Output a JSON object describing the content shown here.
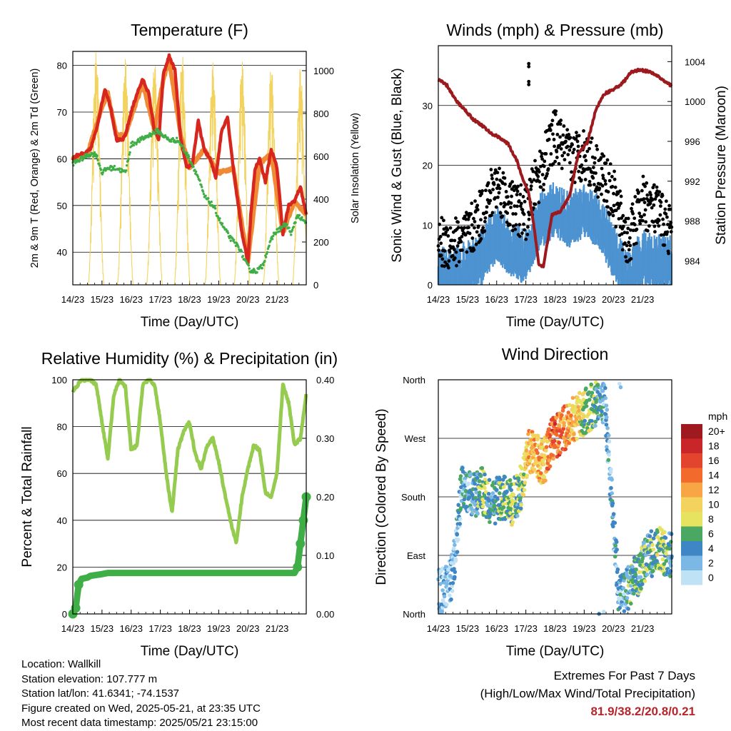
{
  "chart_data": [
    {
      "id": "temp",
      "type": "line",
      "title": "Temperature (F)",
      "xlabel": "Time (Day/UTC)",
      "ylabel": "2m & 9m T (Red, Orange) & 2m Td (Green)",
      "ylabel_right": "Solar Insolation (Yellow)",
      "xticks": [
        "14/23",
        "15/23",
        "16/23",
        "17/23",
        "18/23",
        "19/23",
        "20/23",
        "21/23"
      ],
      "ylim": [
        33,
        83
      ],
      "yticks": [
        40,
        50,
        60,
        70,
        80
      ],
      "ylim_right": [
        0,
        1090
      ],
      "yticks_right": [
        0,
        200,
        400,
        600,
        800,
        1000
      ],
      "series": [
        {
          "name": "2m T",
          "color": "#d7261e",
          "axis": "left",
          "x": [
            0,
            0.2,
            0.4,
            0.6,
            0.8,
            1.0,
            1.1,
            1.3,
            1.5,
            1.7,
            1.8,
            2.0,
            2.2,
            2.4,
            2.6,
            2.8,
            2.95,
            3.1,
            3.3,
            3.5,
            3.7,
            3.9,
            4.1,
            4.3,
            4.5,
            4.7,
            4.9,
            5.1,
            5.3,
            5.5,
            5.65,
            5.8,
            6.0,
            6.1,
            6.25,
            6.4,
            6.6,
            6.8,
            7.0,
            7.2,
            7.4,
            7.6,
            7.8,
            8.0
          ],
          "y": [
            60,
            61,
            61,
            62,
            66,
            72,
            75,
            71,
            64,
            64,
            65,
            70,
            74,
            77,
            74,
            66,
            64,
            78,
            82,
            79,
            64,
            58,
            59,
            68,
            62,
            60,
            56,
            66,
            69,
            58,
            51,
            44,
            38,
            48,
            58,
            60,
            55,
            62,
            58,
            44,
            50,
            51,
            54,
            48
          ]
        },
        {
          "name": "9m T",
          "color": "#f08a35",
          "axis": "left",
          "x": [
            0,
            0.5,
            1.0,
            1.2,
            1.5,
            1.8,
            2.0,
            2.4,
            2.8,
            3.1,
            3.3,
            3.7,
            4.0,
            4.5,
            5.0,
            5.5,
            6.0,
            6.4,
            6.8,
            7.2,
            7.6,
            8.0
          ],
          "y": [
            60,
            61,
            71,
            74,
            65,
            65,
            69,
            76,
            66,
            77,
            81,
            65,
            58,
            62,
            57,
            58,
            38,
            59,
            61,
            44,
            51,
            48
          ]
        },
        {
          "name": "2m Td",
          "color": "#3fae46",
          "axis": "left",
          "x": [
            0,
            0.3,
            0.6,
            0.8,
            1.0,
            1.2,
            1.5,
            1.8,
            2.0,
            2.3,
            2.6,
            2.9,
            3.1,
            3.3,
            3.6,
            4.0,
            4.3,
            4.5,
            4.8,
            5.1,
            5.4,
            5.7,
            5.9,
            6.1,
            6.3,
            6.5,
            6.7,
            6.9,
            7.1,
            7.3,
            7.5,
            7.7,
            7.85,
            8.0
          ],
          "y": [
            59,
            60,
            61,
            61,
            57,
            58,
            58,
            57,
            63,
            64,
            65,
            66,
            65,
            64,
            64,
            60,
            56,
            52,
            50,
            46,
            43,
            41,
            38,
            36,
            36,
            37,
            41,
            44,
            45,
            46,
            44,
            48,
            47,
            46
          ]
        },
        {
          "name": "Solar Insolation",
          "color": "#f3d35e",
          "axis": "right",
          "kind": "solar",
          "peaks_x": [
            0.8,
            1.8,
            2.8,
            3.75,
            4.8,
            5.8,
            6.8,
            7.8
          ],
          "peaks_y": [
            1090,
            1060,
            1050,
            1080,
            1040,
            1050,
            1030,
            1020
          ]
        }
      ]
    },
    {
      "id": "wind",
      "type": "scatter",
      "title": "Winds (mph) & Pressure (mb)",
      "xlabel": "Time (Day/UTC)",
      "ylabel": "Sonic Wind & Gust (Blue, Black)",
      "ylabel_right": "Station Pressure (Maroon)",
      "xticks": [
        "14/23",
        "15/23",
        "16/23",
        "17/23",
        "18/23",
        "19/23",
        "20/23",
        "21/23"
      ],
      "ylim": [
        0,
        40
      ],
      "yticks": [
        0,
        10,
        20,
        30
      ],
      "ylim_right": [
        981.6,
        1005.6
      ],
      "yticks_right": [
        984,
        988,
        992,
        996,
        1000,
        1004
      ],
      "series": [
        {
          "name": "Sonic Wind",
          "color": "#4d93d1",
          "x": [
            0,
            0.5,
            1.0,
            1.5,
            2.0,
            2.5,
            3.0,
            3.5,
            4.0,
            4.5,
            5.0,
            5.5,
            6.0,
            6.5,
            7.0,
            7.5,
            8.0
          ],
          "y": [
            3,
            3,
            4,
            6,
            10,
            7,
            6,
            12,
            14,
            12,
            14,
            12,
            7,
            2,
            6,
            5,
            5
          ]
        },
        {
          "name": "Gust",
          "color": "#000000",
          "x": [
            0,
            0.5,
            1.0,
            1.5,
            2.0,
            2.5,
            3.0,
            3.5,
            4.0,
            4.5,
            5.0,
            5.5,
            6.0,
            6.5,
            7.0,
            7.5,
            8.0
          ],
          "y": [
            7,
            7,
            8,
            12,
            17,
            13,
            12,
            19,
            25,
            21,
            22,
            19,
            15,
            7,
            14,
            12,
            9
          ]
        },
        {
          "name": "Pressure",
          "color": "#9c1a1e",
          "axis": "right",
          "x": [
            0,
            0.3,
            0.6,
            0.9,
            1.2,
            1.5,
            1.8,
            2.1,
            2.4,
            2.7,
            2.9,
            3.1,
            3.3,
            3.45,
            3.6,
            3.9,
            4.2,
            4.5,
            4.8,
            5.1,
            5.4,
            5.7,
            6.0,
            6.3,
            6.6,
            6.9,
            7.2,
            7.5,
            7.8,
            8.0
          ],
          "y": [
            1002.2,
            1001.6,
            1000.1,
            999.2,
            998.2,
            997.6,
            996.8,
            996.4,
            995.7,
            994.0,
            992.1,
            990.8,
            987.0,
            983.6,
            983.5,
            988.6,
            989.0,
            990.5,
            994.8,
            995.8,
            999.2,
            1000.8,
            1001.2,
            1001.8,
            1002.9,
            1003.2,
            1003.0,
            1002.6,
            1001.9,
            1001.6
          ]
        }
      ]
    },
    {
      "id": "rh",
      "type": "line",
      "title": "Relative Humidity (%) & Precipitation (in)",
      "xlabel": "Time (Day/UTC)",
      "ylabel": "Percent & Total Rainfall",
      "xticks": [
        "14/23",
        "15/23",
        "16/23",
        "17/23",
        "18/23",
        "19/23",
        "20/23",
        "21/23"
      ],
      "ylim": [
        0,
        100
      ],
      "yticks": [
        0,
        20,
        40,
        60,
        80,
        100
      ],
      "ylim_right": [
        0,
        0.4
      ],
      "yticks_right": [
        "0.00",
        "0.10",
        "0.20",
        "0.30",
        "0.40"
      ],
      "series": [
        {
          "name": "RH",
          "color": "#95cb4f",
          "x": [
            0,
            0.3,
            0.6,
            0.8,
            1.0,
            1.2,
            1.4,
            1.6,
            1.8,
            2.0,
            2.2,
            2.4,
            2.6,
            2.8,
            3.0,
            3.2,
            3.4,
            3.6,
            3.8,
            4.0,
            4.2,
            4.4,
            4.6,
            4.8,
            5.0,
            5.2,
            5.4,
            5.6,
            5.8,
            6.0,
            6.2,
            6.4,
            6.6,
            6.8,
            7.0,
            7.2,
            7.4,
            7.6,
            7.8,
            8.0
          ],
          "y": [
            95,
            100,
            100,
            98,
            82,
            66,
            93,
            100,
            97,
            70,
            72,
            98,
            100,
            98,
            82,
            60,
            43,
            70,
            78,
            82,
            68,
            62,
            72,
            75,
            65,
            52,
            40,
            30,
            50,
            62,
            72,
            70,
            52,
            50,
            60,
            98,
            90,
            72,
            75,
            94
          ]
        },
        {
          "name": "Total Rainfall",
          "color": "#3fae46",
          "axis": "right",
          "x": [
            0,
            0.1,
            0.2,
            0.3,
            0.5,
            0.6,
            1.0,
            1.2,
            2,
            3,
            4,
            5,
            6,
            7.0,
            7.6,
            7.7,
            7.8,
            7.9,
            8.0
          ],
          "y": [
            0.0,
            0.01,
            0.05,
            0.06,
            0.062,
            0.065,
            0.068,
            0.07,
            0.07,
            0.07,
            0.07,
            0.07,
            0.07,
            0.07,
            0.07,
            0.08,
            0.12,
            0.16,
            0.2
          ]
        }
      ]
    },
    {
      "id": "dir",
      "type": "scatter",
      "title": "Wind Direction",
      "xlabel": "Time (Day/UTC)",
      "ylabel": "Direction (Colored By Speed)",
      "xticks": [
        "14/23",
        "15/23",
        "16/23",
        "17/23",
        "18/23",
        "19/23",
        "20/23",
        "21/23"
      ],
      "yticks": [
        "North",
        "East",
        "South",
        "West",
        "North"
      ],
      "ylim": [
        0,
        360
      ],
      "legend_title": "mph",
      "legend_labels": [
        "20+",
        "18",
        "16",
        "14",
        "12",
        "10",
        "8",
        "6",
        "4",
        "2",
        "0"
      ],
      "legend_colors": [
        "#9e1a1f",
        "#c9262a",
        "#e2442e",
        "#f26b2c",
        "#f8a545",
        "#f3d35e",
        "#e5e35f",
        "#4aa863",
        "#3f86c5",
        "#7bb8e5",
        "#bfe2f5"
      ],
      "series": [
        {
          "name": "Direction",
          "x": [
            0.2,
            0.5,
            0.8,
            1.2,
            1.5,
            1.8,
            2.2,
            2.5,
            2.8,
            3.1,
            3.4,
            3.6,
            3.9,
            4.2,
            4.6,
            5.0,
            5.3,
            5.7,
            6.2,
            6.5,
            6.8,
            7.2,
            7.6,
            7.9
          ],
          "y": [
            35,
            60,
            200,
            180,
            190,
            170,
            180,
            170,
            190,
            250,
            240,
            230,
            270,
            280,
            300,
            310,
            320,
            330,
            20,
            40,
            60,
            90,
            100,
            90
          ],
          "speed": [
            2,
            2,
            3,
            4,
            6,
            4,
            5,
            7,
            5,
            11,
            12,
            10,
            15,
            14,
            11,
            8,
            6,
            3,
            3,
            4,
            6,
            5,
            7,
            4
          ]
        }
      ]
    }
  ],
  "info": {
    "location": "Location: Wallkill",
    "elevation": "Station elevation: 107.777 m",
    "latlon": "Station lat/lon: 41.6341; -74.1537",
    "created": "Figure created on Wed, 2025-05-21, at 23:35 UTC",
    "recent": "Most recent data timestamp: 2025/05/21 23:15:00"
  },
  "extremes": {
    "title": "Extremes For Past 7 Days",
    "subtitle": "(High/Low/Max Wind/Total Precipitation)",
    "values": "81.9/38.2/20.8/0.21"
  }
}
